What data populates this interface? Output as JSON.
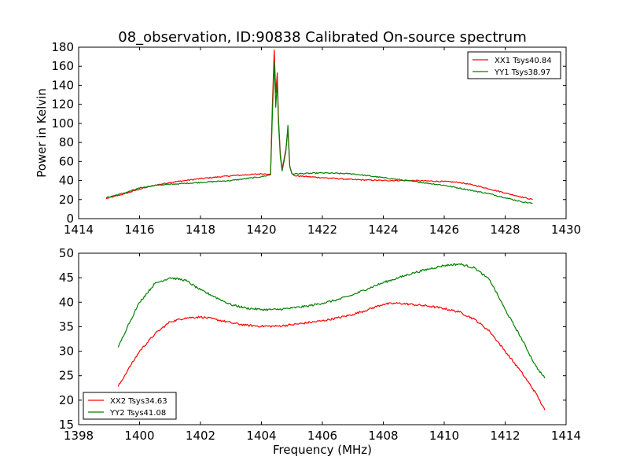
{
  "figure": {
    "title": "08_observation, ID:90838 Calibrated On-source spectrum",
    "shared_xlabel": "Frequency (MHz)"
  },
  "chart_data": [
    {
      "type": "line",
      "title": "08_observation, ID:90838 Calibrated On-source spectrum",
      "xlabel": "",
      "ylabel": "Power in Kelvin",
      "xlim": [
        1414,
        1430
      ],
      "ylim": [
        0,
        180
      ],
      "xticks": [
        1414,
        1416,
        1418,
        1420,
        1422,
        1424,
        1426,
        1428,
        1430
      ],
      "yticks": [
        0,
        20,
        40,
        60,
        80,
        100,
        120,
        140,
        160,
        180
      ],
      "legend_position": "top-right",
      "series": [
        {
          "name": "XX1 Tsys40.84",
          "color": "#ff0000",
          "x": [
            1414.9,
            1415.5,
            1416.0,
            1416.5,
            1417.0,
            1418.0,
            1419.0,
            1420.0,
            1420.3,
            1420.36,
            1420.42,
            1420.47,
            1420.52,
            1420.56,
            1420.62,
            1420.68,
            1420.74,
            1420.8,
            1420.87,
            1420.93,
            1421.0,
            1421.1,
            1422.0,
            1423.0,
            1424.0,
            1425.0,
            1426.0,
            1426.5,
            1427.0,
            1427.5,
            1428.0,
            1428.5,
            1428.9
          ],
          "y": [
            21,
            26,
            31,
            35,
            38,
            42,
            45,
            47,
            47,
            120,
            177,
            132,
            153,
            105,
            68,
            52,
            62,
            72,
            93,
            55,
            47,
            45,
            43,
            41,
            40,
            40,
            39,
            38,
            35,
            31,
            27,
            23,
            20
          ]
        },
        {
          "name": "YY1 Tsys38.97",
          "color": "#008000",
          "x": [
            1414.9,
            1415.5,
            1416.0,
            1416.5,
            1417.0,
            1418.0,
            1419.0,
            1420.0,
            1420.3,
            1420.36,
            1420.42,
            1420.47,
            1420.52,
            1420.56,
            1420.62,
            1420.68,
            1420.74,
            1420.8,
            1420.87,
            1420.93,
            1421.0,
            1421.1,
            1422.0,
            1423.0,
            1424.0,
            1425.0,
            1426.0,
            1426.5,
            1427.0,
            1427.5,
            1428.0,
            1428.5,
            1428.9
          ],
          "y": [
            22,
            27,
            32,
            35,
            36,
            38,
            40,
            44,
            46,
            110,
            165,
            117,
            145,
            100,
            65,
            50,
            60,
            70,
            98,
            55,
            47,
            47,
            48,
            47,
            43,
            39,
            35,
            32,
            29,
            26,
            22,
            18,
            16
          ]
        }
      ]
    },
    {
      "type": "line",
      "title": "",
      "xlabel": "Frequency (MHz)",
      "ylabel": "",
      "xlim": [
        1398,
        1414
      ],
      "ylim": [
        15,
        50
      ],
      "xticks": [
        1398,
        1400,
        1402,
        1404,
        1406,
        1408,
        1410,
        1412,
        1414
      ],
      "yticks": [
        15,
        20,
        25,
        30,
        35,
        40,
        45,
        50
      ],
      "legend_position": "bottom-left",
      "series": [
        {
          "name": "XX2 Tsys34.63",
          "color": "#ff0000",
          "x": [
            1399.3,
            1399.6,
            1400.0,
            1400.5,
            1401.0,
            1401.5,
            1402.0,
            1402.5,
            1403.0,
            1403.5,
            1404.0,
            1404.5,
            1405.0,
            1405.5,
            1406.0,
            1406.5,
            1407.0,
            1407.5,
            1408.0,
            1408.5,
            1409.0,
            1409.5,
            1410.0,
            1410.5,
            1411.0,
            1411.5,
            1412.0,
            1412.5,
            1413.0,
            1413.3
          ],
          "y": [
            22.8,
            26,
            30,
            33.5,
            36,
            36.8,
            37,
            36.5,
            35.8,
            35.3,
            35.1,
            35.1,
            35.4,
            35.8,
            36.2,
            36.8,
            37.5,
            38.5,
            39.6,
            39.8,
            39.5,
            39.2,
            38.7,
            38,
            36.5,
            34,
            30,
            26,
            21.5,
            18
          ]
        },
        {
          "name": "YY2 Tsys41.08",
          "color": "#008000",
          "x": [
            1399.3,
            1399.6,
            1400.0,
            1400.5,
            1401.0,
            1401.5,
            1402.0,
            1402.5,
            1403.0,
            1403.5,
            1404.0,
            1404.5,
            1405.0,
            1405.5,
            1406.0,
            1406.5,
            1407.0,
            1407.5,
            1408.0,
            1408.5,
            1409.0,
            1409.5,
            1410.0,
            1410.5,
            1411.0,
            1411.5,
            1412.0,
            1412.5,
            1413.0,
            1413.3
          ],
          "y": [
            30.8,
            35,
            40,
            43.8,
            45,
            44.5,
            42.5,
            41,
            39.5,
            38.8,
            38.5,
            38.5,
            38.8,
            39.2,
            39.8,
            40.5,
            41.5,
            42.8,
            44,
            45,
            46,
            46.8,
            47.5,
            47.8,
            47,
            44.5,
            38.5,
            33,
            27,
            24.5
          ]
        }
      ]
    }
  ]
}
